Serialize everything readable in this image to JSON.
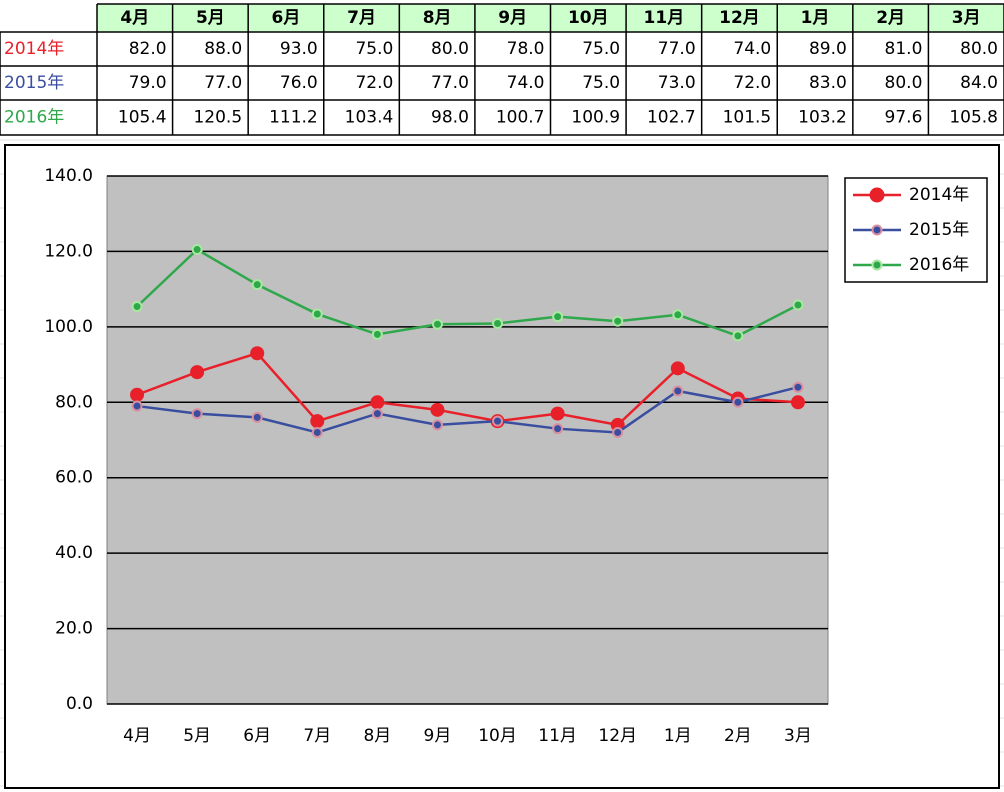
{
  "table": {
    "header": [
      "4月",
      "5月",
      "6月",
      "7月",
      "8月",
      "9月",
      "10月",
      "11月",
      "12月",
      "1月",
      "2月",
      "3月"
    ],
    "rows": [
      {
        "label": "2014年",
        "cells": [
          "82.0",
          "88.0",
          "93.0",
          "75.0",
          "80.0",
          "78.0",
          "75.0",
          "77.0",
          "74.0",
          "89.0",
          "81.0",
          "80.0"
        ]
      },
      {
        "label": "2015年",
        "cells": [
          "79.0",
          "77.0",
          "76.0",
          "72.0",
          "77.0",
          "74.0",
          "75.0",
          "73.0",
          "72.0",
          "83.0",
          "80.0",
          "84.0"
        ]
      },
      {
        "label": "2016年",
        "cells": [
          "105.4",
          "120.5",
          "111.2",
          "103.4",
          "98.0",
          "100.7",
          "100.9",
          "102.7",
          "101.5",
          "103.2",
          "97.6",
          "105.8"
        ]
      }
    ]
  },
  "chart_data": {
    "type": "line",
    "categories": [
      "4月",
      "5月",
      "6月",
      "7月",
      "8月",
      "9月",
      "10月",
      "11月",
      "12月",
      "1月",
      "2月",
      "3月"
    ],
    "series": [
      {
        "name": "2014年",
        "color": "#e8202a",
        "values": [
          82,
          88,
          93,
          75,
          80,
          78,
          75,
          77,
          74,
          89,
          81,
          80
        ]
      },
      {
        "name": "2015年",
        "color": "#3a4ea0",
        "values": [
          79,
          77,
          76,
          72,
          77,
          74,
          75,
          73,
          72,
          83,
          80,
          84
        ]
      },
      {
        "name": "2016年",
        "color": "#2ea84a",
        "values": [
          105.4,
          120.5,
          111.2,
          103.4,
          98,
          100.7,
          100.9,
          102.7,
          101.5,
          103.2,
          97.6,
          105.8
        ]
      }
    ],
    "ylim": [
      0,
      140
    ],
    "yticks": [
      {
        "value": 0,
        "label": "0.0"
      },
      {
        "value": 20,
        "label": "20.0"
      },
      {
        "value": 40,
        "label": "40.0"
      },
      {
        "value": 60,
        "label": "60.0"
      },
      {
        "value": 80,
        "label": "80.0"
      },
      {
        "value": 100,
        "label": "100.0"
      },
      {
        "value": 120,
        "label": "120.0"
      },
      {
        "value": 140,
        "label": "140.0"
      }
    ],
    "grid": true,
    "legend": "top-right"
  }
}
